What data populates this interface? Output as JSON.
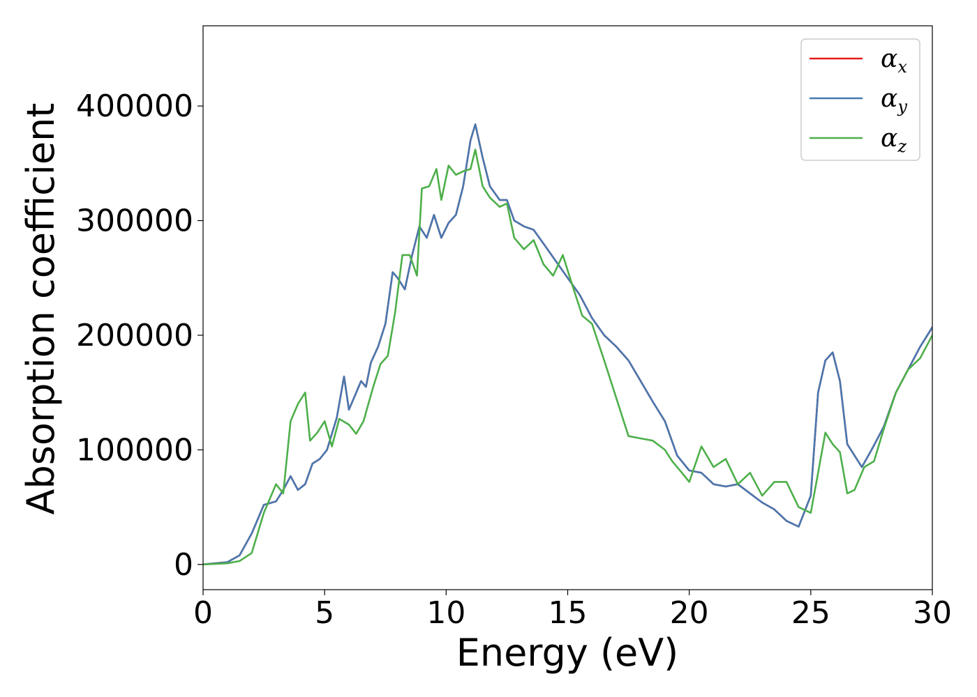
{
  "chart_data": {
    "type": "line",
    "xlabel": "Energy (eV)",
    "ylabel": "Absorption coefficient",
    "xlim": [
      0,
      30
    ],
    "ylim": [
      -22000,
      470000
    ],
    "x_ticks": [
      0,
      5,
      10,
      15,
      20,
      25,
      30
    ],
    "y_ticks": [
      0,
      100000,
      200000,
      300000,
      400000
    ],
    "x_tick_labels": [
      "0",
      "5",
      "10",
      "15",
      "20",
      "25",
      "30"
    ],
    "y_tick_labels": [
      "0",
      "100000",
      "200000",
      "300000",
      "400000"
    ],
    "grid": false,
    "legend_position": "top-right",
    "series": [
      {
        "name": "αx",
        "symbol": "α",
        "subscript": "x",
        "color": "#e41a1c",
        "x": [
          0,
          1,
          1.5,
          2,
          2.5,
          3,
          3.3,
          3.6,
          3.9,
          4.2,
          4.5,
          4.8,
          5.1,
          5.5,
          5.8,
          6.0,
          6.2,
          6.5,
          6.7,
          6.9,
          7.2,
          7.5,
          7.8,
          8.0,
          8.3,
          8.6,
          8.9,
          9.2,
          9.5,
          9.8,
          10.1,
          10.4,
          10.7,
          11.0,
          11.2,
          11.5,
          11.8,
          12.2,
          12.5,
          12.8,
          13.2,
          13.6,
          14.0,
          14.5,
          15.0,
          15.5,
          16.0,
          16.5,
          17.0,
          17.5,
          18.0,
          18.5,
          19.0,
          19.5,
          20.0,
          20.5,
          21.0,
          21.5,
          22.0,
          22.5,
          23.0,
          23.5,
          24.0,
          24.5,
          25.0,
          25.3,
          25.6,
          25.9,
          26.2,
          26.5,
          26.8,
          27.1,
          27.5,
          28.0,
          28.5,
          29.0,
          29.5,
          30.0
        ],
        "values": [
          0,
          2000,
          8000,
          27000,
          52000,
          55000,
          65000,
          77000,
          65000,
          70000,
          88000,
          92000,
          100000,
          128000,
          164000,
          135000,
          145000,
          160000,
          155000,
          176000,
          190000,
          210000,
          255000,
          250000,
          240000,
          270000,
          295000,
          285000,
          305000,
          285000,
          298000,
          305000,
          330000,
          370000,
          384000,
          355000,
          330000,
          318000,
          318000,
          300000,
          295000,
          292000,
          280000,
          265000,
          250000,
          235000,
          215000,
          200000,
          190000,
          178000,
          160000,
          142000,
          125000,
          95000,
          82000,
          80000,
          70000,
          68000,
          70000,
          62000,
          54000,
          48000,
          38000,
          33000,
          60000,
          150000,
          178000,
          185000,
          160000,
          105000,
          95000,
          85000,
          100000,
          120000,
          150000,
          170000,
          190000,
          207000
        ]
      },
      {
        "name": "αy",
        "symbol": "α",
        "subscript": "y",
        "color": "#4878b0",
        "x": [
          0,
          1,
          1.5,
          2,
          2.5,
          3,
          3.3,
          3.6,
          3.9,
          4.2,
          4.5,
          4.8,
          5.1,
          5.5,
          5.8,
          6.0,
          6.2,
          6.5,
          6.7,
          6.9,
          7.2,
          7.5,
          7.8,
          8.0,
          8.3,
          8.6,
          8.9,
          9.2,
          9.5,
          9.8,
          10.1,
          10.4,
          10.7,
          11.0,
          11.2,
          11.5,
          11.8,
          12.2,
          12.5,
          12.8,
          13.2,
          13.6,
          14.0,
          14.5,
          15.0,
          15.5,
          16.0,
          16.5,
          17.0,
          17.5,
          18.0,
          18.5,
          19.0,
          19.5,
          20.0,
          20.5,
          21.0,
          21.5,
          22.0,
          22.5,
          23.0,
          23.5,
          24.0,
          24.5,
          25.0,
          25.3,
          25.6,
          25.9,
          26.2,
          26.5,
          26.8,
          27.1,
          27.5,
          28.0,
          28.5,
          29.0,
          29.5,
          30.0
        ],
        "values": [
          0,
          2000,
          8000,
          27000,
          52000,
          55000,
          65000,
          77000,
          65000,
          70000,
          88000,
          92000,
          100000,
          128000,
          164000,
          135000,
          145000,
          160000,
          155000,
          176000,
          190000,
          210000,
          255000,
          250000,
          240000,
          270000,
          295000,
          285000,
          305000,
          285000,
          298000,
          305000,
          330000,
          370000,
          384000,
          355000,
          330000,
          318000,
          318000,
          300000,
          295000,
          292000,
          280000,
          265000,
          250000,
          235000,
          215000,
          200000,
          190000,
          178000,
          160000,
          142000,
          125000,
          95000,
          82000,
          80000,
          70000,
          68000,
          70000,
          62000,
          54000,
          48000,
          38000,
          33000,
          60000,
          150000,
          178000,
          185000,
          160000,
          105000,
          95000,
          85000,
          100000,
          120000,
          150000,
          170000,
          190000,
          207000
        ]
      },
      {
        "name": "αz",
        "symbol": "α",
        "subscript": "z",
        "color": "#4daf4a",
        "x": [
          0,
          1,
          1.5,
          2,
          2.5,
          3,
          3.3,
          3.6,
          3.9,
          4.2,
          4.4,
          4.7,
          5.0,
          5.3,
          5.6,
          6.0,
          6.3,
          6.6,
          7.0,
          7.3,
          7.6,
          7.9,
          8.2,
          8.5,
          8.8,
          9.0,
          9.3,
          9.6,
          9.8,
          10.1,
          10.4,
          10.7,
          11.0,
          11.2,
          11.5,
          11.8,
          12.2,
          12.5,
          12.8,
          13.2,
          13.6,
          14.0,
          14.4,
          14.8,
          15.2,
          15.6,
          16.0,
          16.5,
          17.0,
          17.5,
          18.0,
          18.5,
          19.0,
          19.3,
          19.7,
          20.0,
          20.5,
          21.0,
          21.5,
          22.0,
          22.5,
          23.0,
          23.5,
          24.0,
          24.5,
          25.0,
          25.3,
          25.6,
          25.9,
          26.2,
          26.5,
          26.8,
          27.2,
          27.6,
          28.0,
          28.5,
          29.0,
          29.5,
          30.0
        ],
        "values": [
          0,
          1000,
          3000,
          10000,
          45000,
          70000,
          62000,
          125000,
          140000,
          150000,
          108000,
          115000,
          125000,
          103000,
          127000,
          122000,
          114000,
          125000,
          155000,
          175000,
          182000,
          220000,
          270000,
          270000,
          252000,
          328000,
          330000,
          345000,
          318000,
          348000,
          340000,
          343000,
          345000,
          362000,
          330000,
          320000,
          312000,
          315000,
          285000,
          275000,
          283000,
          262000,
          252000,
          270000,
          243000,
          217000,
          210000,
          178000,
          145000,
          112000,
          110000,
          108000,
          100000,
          90000,
          80000,
          72000,
          103000,
          85000,
          92000,
          70000,
          80000,
          60000,
          72000,
          72000,
          50000,
          45000,
          80000,
          115000,
          105000,
          98000,
          62000,
          65000,
          85000,
          90000,
          118000,
          150000,
          170000,
          180000,
          200000
        ]
      }
    ]
  }
}
